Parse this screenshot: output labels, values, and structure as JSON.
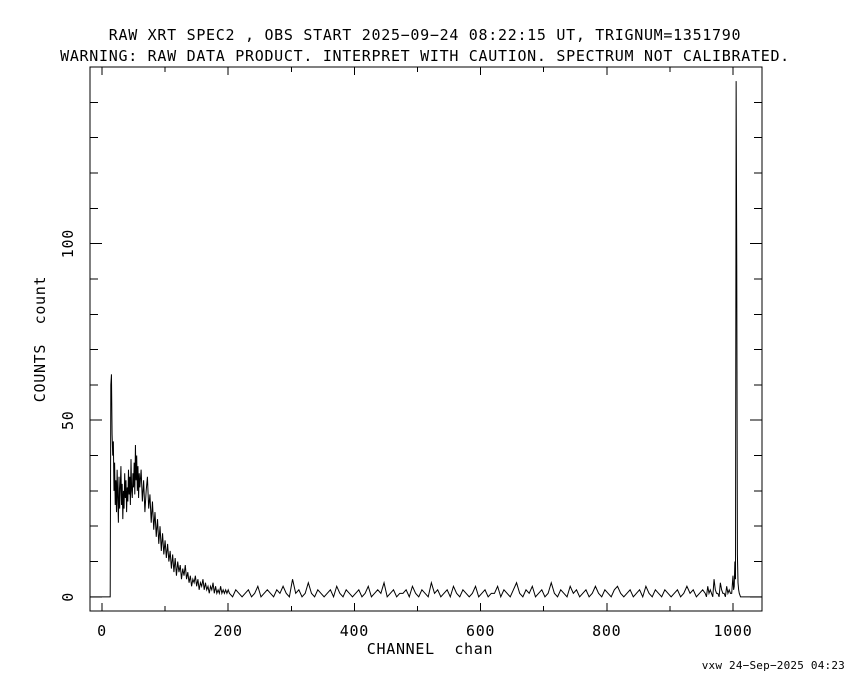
{
  "window": {
    "background": "#ffffff",
    "foreground": "#000000"
  },
  "footer": {
    "credit": "vxw 24−Sep−2025 04:23"
  },
  "chart_data": {
    "type": "line",
    "title": "RAW XRT SPEC2 , OBS START 2025−09−24 08:22:15 UT, TRIGNUM=1351790",
    "subtitle": "WARNING: RAW DATA PRODUCT. INTERPRET WITH CAUTION. SPECTRUM NOT CALIBRATED.",
    "xlabel": "CHANNEL  chan",
    "ylabel": "COUNTS  count",
    "xlim": [
      -19,
      1046
    ],
    "ylim": [
      -4,
      150
    ],
    "grid": false,
    "legend": "none",
    "line_color": "#000000",
    "frame_color": "#000000",
    "x_major_ticks": [
      0,
      200,
      400,
      600,
      800,
      1000
    ],
    "x_major_labels": [
      "0",
      "200",
      "400",
      "600",
      "800",
      "1000"
    ],
    "x_minor_ticks": [
      100,
      300,
      500,
      700,
      900
    ],
    "y_major_ticks": [
      0,
      50,
      100
    ],
    "y_major_labels": [
      "0",
      "50",
      "100"
    ],
    "y_minor_ticks": [
      10,
      20,
      30,
      40,
      60,
      70,
      80,
      90,
      110,
      120,
      130,
      140
    ],
    "features": {
      "low_energy_hump": {
        "rise_channel": 14,
        "peak_channel": 15,
        "peak_counts": 63,
        "decay_to_baseline_channel": 200
      },
      "overflow_spike": {
        "channel": 1005,
        "peak_counts": 146,
        "adjacent_channel": 1006,
        "adjacent_counts": 94
      },
      "noise_floor_counts": [
        0,
        3
      ]
    },
    "segments": [
      {
        "points": [
          [
            -19,
            0
          ],
          [
            12,
            0
          ],
          [
            13,
            0
          ],
          [
            14,
            60
          ],
          [
            15,
            63
          ],
          [
            16,
            46
          ],
          [
            17,
            40
          ],
          [
            18,
            44
          ],
          [
            19,
            30
          ],
          [
            20,
            38
          ],
          [
            21,
            26
          ],
          [
            22,
            33
          ],
          [
            23,
            24
          ],
          [
            24,
            36
          ],
          [
            25,
            28
          ],
          [
            26,
            21
          ],
          [
            27,
            34
          ],
          [
            28,
            25
          ],
          [
            29,
            31
          ],
          [
            30,
            37
          ],
          [
            31,
            26
          ],
          [
            32,
            32
          ],
          [
            33,
            22
          ],
          [
            34,
            30
          ],
          [
            35,
            25
          ],
          [
            36,
            35
          ],
          [
            37,
            28
          ],
          [
            38,
            33
          ],
          [
            39,
            24
          ],
          [
            40,
            31
          ],
          [
            41,
            27
          ],
          [
            42,
            36
          ],
          [
            43,
            29
          ],
          [
            44,
            34
          ],
          [
            45,
            26
          ],
          [
            46,
            39
          ],
          [
            47,
            30
          ],
          [
            48,
            28
          ],
          [
            49,
            35
          ],
          [
            50,
            31
          ],
          [
            51,
            38
          ],
          [
            52,
            29
          ],
          [
            53,
            43
          ],
          [
            54,
            33
          ],
          [
            55,
            40
          ],
          [
            56,
            30
          ],
          [
            57,
            37
          ],
          [
            58,
            28
          ],
          [
            59,
            35
          ],
          [
            60,
            31
          ],
          [
            62,
            36
          ],
          [
            64,
            27
          ],
          [
            66,
            33
          ],
          [
            68,
            24
          ],
          [
            70,
            30
          ],
          [
            72,
            34
          ],
          [
            74,
            25
          ],
          [
            76,
            29
          ],
          [
            78,
            21
          ],
          [
            80,
            27
          ],
          [
            82,
            19
          ],
          [
            84,
            24
          ],
          [
            86,
            17
          ],
          [
            88,
            22
          ],
          [
            90,
            15
          ],
          [
            92,
            20
          ],
          [
            94,
            13
          ],
          [
            96,
            18
          ],
          [
            98,
            12
          ],
          [
            100,
            16
          ],
          [
            102,
            11
          ],
          [
            104,
            15
          ],
          [
            106,
            10
          ],
          [
            108,
            13
          ],
          [
            110,
            8
          ],
          [
            112,
            12
          ],
          [
            114,
            7
          ],
          [
            116,
            11
          ],
          [
            118,
            6
          ],
          [
            120,
            10
          ],
          [
            122,
            7
          ],
          [
            124,
            9
          ],
          [
            126,
            5
          ],
          [
            128,
            8
          ],
          [
            130,
            6
          ],
          [
            132,
            9
          ],
          [
            134,
            5
          ],
          [
            136,
            7
          ],
          [
            138,
            4
          ],
          [
            140,
            6
          ],
          [
            142,
            3
          ],
          [
            144,
            5
          ],
          [
            146,
            4
          ],
          [
            148,
            6
          ],
          [
            150,
            3
          ],
          [
            152,
            5
          ],
          [
            154,
            2
          ],
          [
            156,
            4
          ],
          [
            158,
            3
          ],
          [
            160,
            5
          ],
          [
            162,
            2
          ],
          [
            164,
            4
          ],
          [
            166,
            2
          ],
          [
            168,
            3
          ],
          [
            170,
            1
          ],
          [
            172,
            3
          ],
          [
            174,
            2
          ],
          [
            176,
            4
          ],
          [
            178,
            1
          ],
          [
            180,
            3
          ],
          [
            182,
            1
          ],
          [
            184,
            2
          ],
          [
            186,
            1
          ],
          [
            188,
            3
          ],
          [
            190,
            1
          ],
          [
            192,
            2
          ],
          [
            194,
            1
          ],
          [
            196,
            2
          ],
          [
            198,
            1
          ],
          [
            200,
            2
          ]
        ]
      },
      {
        "run": {
          "start": 202,
          "step": 5,
          "values": [
            1,
            0,
            2,
            1,
            0,
            1,
            2,
            0,
            1,
            3,
            0,
            1,
            2,
            1,
            0,
            2,
            1,
            3,
            1,
            0,
            5,
            1,
            2,
            0,
            1,
            4,
            1,
            0,
            2,
            1,
            0,
            1,
            2,
            0,
            3,
            1,
            0,
            2,
            1,
            0,
            1,
            2,
            0,
            1,
            3,
            0,
            1,
            2,
            1,
            4,
            0,
            1,
            2,
            0,
            1,
            1,
            2,
            0,
            3,
            1,
            0,
            2,
            1,
            0,
            4,
            1,
            2,
            0,
            1,
            2,
            0,
            3,
            1,
            0,
            2,
            1,
            0,
            1,
            3,
            0,
            1,
            2,
            0,
            1,
            1,
            3,
            0,
            2,
            1,
            0,
            2,
            4,
            1,
            0,
            2,
            1,
            3,
            0,
            1,
            2,
            0,
            1,
            4,
            1,
            0,
            2,
            1,
            0,
            3,
            1,
            2,
            0,
            1,
            2,
            0,
            1,
            3,
            1,
            0,
            2,
            1,
            0,
            2,
            3,
            1,
            0,
            1,
            2,
            0,
            1,
            2,
            0,
            3,
            1,
            0,
            2,
            1,
            0,
            2,
            1,
            0,
            1,
            2,
            0,
            1,
            3,
            1,
            2,
            0,
            1,
            2
          ]
        }
      },
      {
        "points": [
          [
            956,
            1
          ],
          [
            958,
            0
          ],
          [
            960,
            3
          ],
          [
            962,
            1
          ],
          [
            964,
            2
          ],
          [
            966,
            1
          ],
          [
            968,
            0
          ],
          [
            970,
            5
          ],
          [
            972,
            2
          ],
          [
            974,
            1
          ],
          [
            976,
            1
          ],
          [
            978,
            0
          ],
          [
            980,
            4
          ],
          [
            982,
            2
          ],
          [
            984,
            1
          ],
          [
            986,
            1
          ],
          [
            988,
            0
          ],
          [
            990,
            3
          ],
          [
            992,
            1
          ],
          [
            994,
            2
          ],
          [
            996,
            1
          ],
          [
            998,
            1
          ],
          [
            1000,
            6
          ],
          [
            1001,
            2
          ],
          [
            1002,
            3
          ],
          [
            1003,
            10
          ],
          [
            1004,
            5
          ],
          [
            1005,
            146
          ],
          [
            1006,
            94
          ],
          [
            1007,
            12
          ],
          [
            1008,
            4
          ],
          [
            1009,
            2
          ],
          [
            1010,
            1
          ],
          [
            1012,
            0
          ],
          [
            1046,
            0
          ]
        ]
      }
    ]
  }
}
